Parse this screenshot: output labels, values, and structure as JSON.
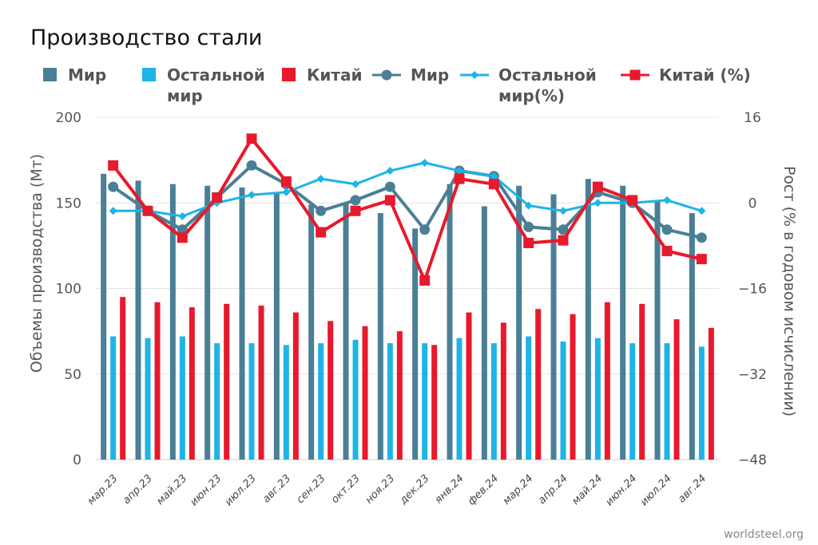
{
  "chart_data": {
    "type": "bar",
    "title": "Производство стали",
    "source": "worldsteel.org",
    "ylabel": "Объемы производства (Мт)",
    "y2label": "Рост (% в годовом исчислении)",
    "ylim": [
      0,
      200
    ],
    "yticks": [
      "0",
      "50",
      "100",
      "150",
      "200"
    ],
    "y2lim": [
      -48,
      16
    ],
    "y2ticks": [
      "−48",
      "−32",
      "−16",
      "0",
      "16"
    ],
    "legend_placement": "top",
    "categories": [
      "мар.23",
      "апр.23",
      "май.23",
      "июн.23",
      "июл.23",
      "авг.23",
      "сен.23",
      "окт.23",
      "ноя.23",
      "дек.23",
      "янв.24",
      "фев.24",
      "мар.24",
      "апр.24",
      "май.24",
      "июн.24",
      "июл.24",
      "авг.24"
    ],
    "series": [
      {
        "name": "Мир",
        "kind": "bar",
        "color": "#4a7f96",
        "values": [
          167,
          163,
          161,
          160,
          159,
          156,
          149,
          150,
          144,
          135,
          161,
          148,
          160,
          155,
          164,
          160,
          151,
          144
        ]
      },
      {
        "name": "Остальной мир",
        "kind": "bar",
        "color": "#1eb4e6",
        "values": [
          72,
          71,
          72,
          68,
          68,
          67,
          68,
          70,
          68,
          68,
          71,
          68,
          72,
          69,
          71,
          68,
          68,
          66
        ]
      },
      {
        "name": "Китай",
        "kind": "bar",
        "color": "#e8192c",
        "values": [
          95,
          92,
          89,
          91,
          90,
          86,
          81,
          78,
          75,
          67,
          86,
          80,
          88,
          85,
          92,
          91,
          82,
          77
        ]
      },
      {
        "name": "Мир",
        "kind": "line",
        "axis": "y2",
        "marker": "circle",
        "color": "#4a7f96",
        "values": [
          3,
          -1.5,
          -5,
          1,
          7,
          3.5,
          -1.5,
          0.5,
          3,
          -5,
          6,
          5,
          -4.5,
          -5,
          2,
          0,
          -5,
          -6.5
        ]
      },
      {
        "name": "Остальной мир(%)",
        "kind": "line",
        "axis": "y2",
        "marker": "diamond",
        "color": "#1eb4e6",
        "values": [
          -1.5,
          -1.5,
          -2.5,
          0,
          1.5,
          2,
          4.5,
          3.5,
          6,
          7.5,
          6,
          5,
          -0.5,
          -1.5,
          0,
          0,
          0.5,
          -1.5
        ]
      },
      {
        "name": "Китай (%)",
        "kind": "line",
        "axis": "y2",
        "marker": "square",
        "color": "#e8192c",
        "values": [
          7,
          -1.5,
          -6.5,
          1,
          12,
          4,
          -5.5,
          -1.5,
          0.5,
          -14.5,
          4.5,
          3.5,
          -7.5,
          -7,
          3,
          0.5,
          -9,
          -10.5
        ]
      }
    ]
  }
}
